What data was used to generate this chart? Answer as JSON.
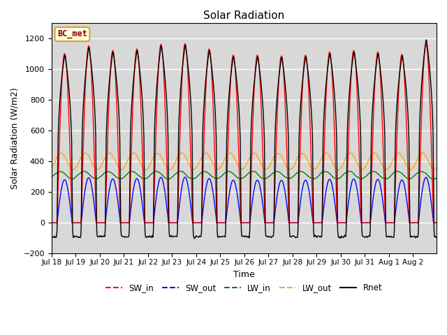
{
  "title": "Solar Radiation",
  "ylabel": "Solar Radiation (W/m2)",
  "xlabel": "Time",
  "ylim": [
    -200,
    1300
  ],
  "yticks": [
    -200,
    0,
    200,
    400,
    600,
    800,
    1000,
    1200
  ],
  "station_label": "BC_met",
  "legend_entries": [
    "SW_in",
    "SW_out",
    "LW_in",
    "LW_out",
    "Rnet"
  ],
  "legend_colors": [
    "red",
    "blue",
    "green",
    "orange",
    "black"
  ],
  "bg_color": "#d8d8d8",
  "n_days": 16,
  "dt_hours": 0.5,
  "day_peaks_sw": [
    1100,
    1150,
    1120,
    1130,
    1160,
    1165,
    1130,
    1090,
    1090,
    1085,
    1090,
    1110,
    1120,
    1110,
    1095,
    1160
  ],
  "day_peaks_rnet": [
    1100,
    1150,
    1120,
    1130,
    1160,
    1165,
    1130,
    1090,
    1090,
    1085,
    1090,
    1110,
    1120,
    1110,
    1095,
    1200
  ],
  "sunrise": 5.5,
  "sunset": 20.5,
  "lw_in_base": 310,
  "lw_out_base": 400
}
